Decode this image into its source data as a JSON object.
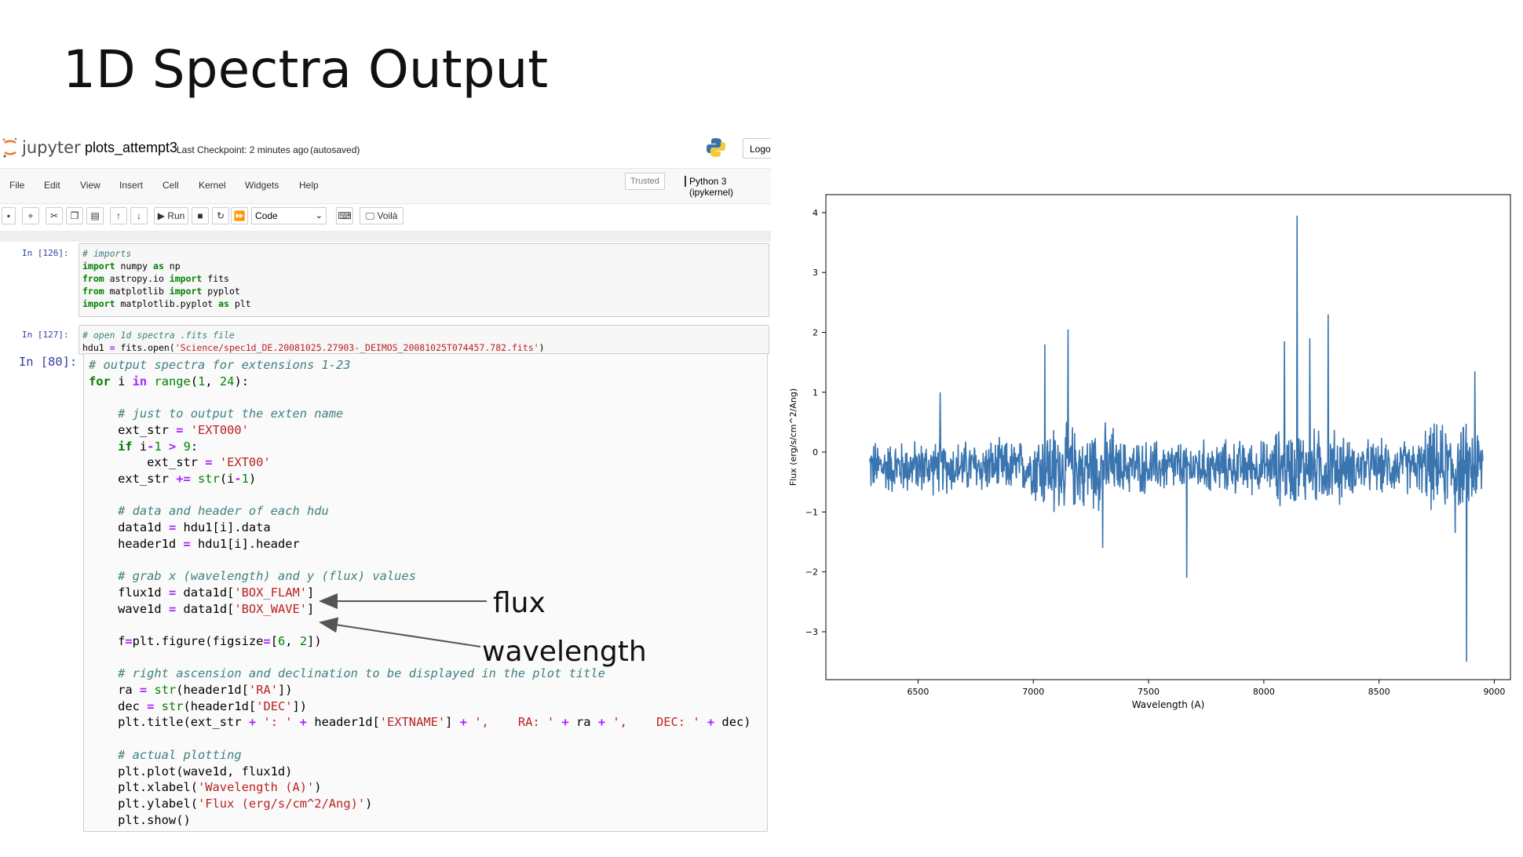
{
  "slide": {
    "title": "1D Spectra Output"
  },
  "jupyter": {
    "logo_text": "jupyter",
    "notebook_name": "plots_attempt3",
    "checkpoint": "Last Checkpoint: 2 minutes ago",
    "autosave": "(autosaved)",
    "logout": "Logout",
    "menu": [
      "File",
      "Edit",
      "View",
      "Insert",
      "Cell",
      "Kernel",
      "Widgets",
      "Help"
    ],
    "trusted": "Trusted",
    "kernel": "Python 3 (ipykernel)",
    "toolbar": {
      "run": "Run",
      "cell_type": "Code",
      "voila": "Voilà"
    },
    "cells": [
      {
        "prompt": "In [126]:"
      },
      {
        "prompt": "In [127]:"
      },
      {
        "prompt": "In [80]:"
      }
    ]
  },
  "annotations": {
    "flux": "flux",
    "wavelength": "wavelength"
  },
  "chart_data": {
    "type": "line",
    "title": "",
    "xlabel": "Wavelength (A)",
    "ylabel": "Flux (erg/s/cm^2/Ang)",
    "xlim": [
      6100,
      9070
    ],
    "ylim": [
      -3.8,
      4.3
    ],
    "xticks": [
      6500,
      7000,
      7500,
      8000,
      8500,
      9000
    ],
    "yticks": [
      4,
      3,
      2,
      1,
      0,
      -1,
      -2,
      -3
    ],
    "ytick_labels": [
      "4",
      "3",
      "2",
      "1",
      "0",
      "−1",
      "−2",
      "−3"
    ],
    "grid": false,
    "series": [
      {
        "color": "#3a75b0",
        "x_range": [
          6290,
          8950
        ],
        "baseline": -0.25,
        "features": [
          {
            "x": 6595,
            "y": 1.0
          },
          {
            "x": 7050,
            "y": 1.8
          },
          {
            "x": 7090,
            "y": -1.0
          },
          {
            "x": 7150,
            "y": 2.05
          },
          {
            "x": 7220,
            "y": -0.9
          },
          {
            "x": 7300,
            "y": -1.6
          },
          {
            "x": 7665,
            "y": -2.1
          },
          {
            "x": 8090,
            "y": 1.85
          },
          {
            "x": 8145,
            "y": 3.95
          },
          {
            "x": 8200,
            "y": 1.9
          },
          {
            "x": 8280,
            "y": 2.3
          },
          {
            "x": 8830,
            "y": -1.35
          },
          {
            "x": 8880,
            "y": -3.5
          },
          {
            "x": 8915,
            "y": 1.35
          }
        ]
      }
    ]
  }
}
